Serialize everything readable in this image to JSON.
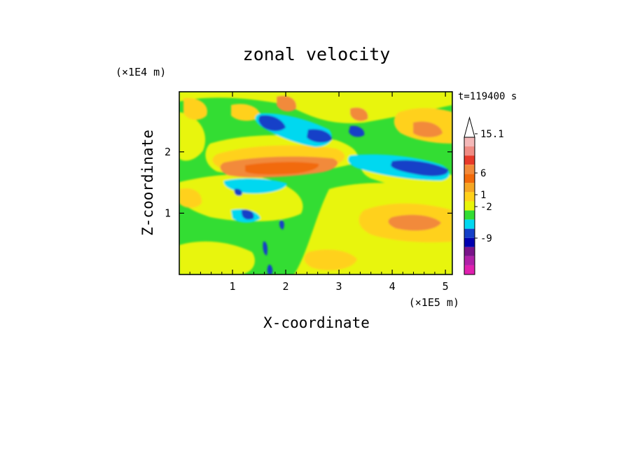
{
  "chart_data": {
    "type": "heatmap",
    "title": "zonal velocity",
    "xlabel": "X-coordinate",
    "ylabel": "Z-coordinate",
    "x_unit": "(×1E5 m)",
    "y_unit": "(×1E4 m)",
    "time_label": "t=119400 s",
    "xlim": [
      0,
      5.13
    ],
    "ylim": [
      0,
      2.98
    ],
    "x_ticks": [
      "1",
      "2",
      "3",
      "4",
      "5"
    ],
    "y_ticks": [
      "1",
      "2"
    ],
    "colorbar": {
      "labels": [
        "15.1",
        "6",
        "1",
        "-2",
        "-9"
      ],
      "colors": [
        "#ffffff",
        "#f4b8b8",
        "#f08c84",
        "#e83a2a",
        "#f28a3a",
        "#f26a0a",
        "#f5a623",
        "#ffd11a",
        "#e8f50a",
        "#33dd33",
        "#00d8f0",
        "#1440c8",
        "#0000b0",
        "#7a148a",
        "#b020a8",
        "#e020b0"
      ],
      "stop_values": [
        "15.1",
        "6",
        "1",
        "-2",
        "-9"
      ]
    },
    "colors": {
      "background_field": "#33dd33",
      "strong_positive": "#f26a0a",
      "weak_positive": "#e8f50a",
      "moderate_positive": "#ffd11a",
      "weak_negative": "#00d8f0",
      "strong_negative": "#1440c8"
    },
    "features": [
      {
        "name": "upper-jet-band",
        "z_range": [
          1.5,
          2.0
        ],
        "x_range": [
          0.5,
          3.2
        ],
        "sign": "positive"
      },
      {
        "name": "negative-core-upper-left",
        "z_range": [
          2.3,
          2.6
        ],
        "x_range": [
          1.4,
          1.9
        ],
        "sign": "negative"
      },
      {
        "name": "negative-core-right",
        "z_range": [
          1.7,
          1.9
        ],
        "x_range": [
          4.0,
          5.0
        ],
        "sign": "negative"
      },
      {
        "name": "broad-positive-lower-right",
        "z_range": [
          0.2,
          1.3
        ],
        "x_range": [
          3.0,
          5.13
        ],
        "sign": "positive"
      }
    ]
  }
}
